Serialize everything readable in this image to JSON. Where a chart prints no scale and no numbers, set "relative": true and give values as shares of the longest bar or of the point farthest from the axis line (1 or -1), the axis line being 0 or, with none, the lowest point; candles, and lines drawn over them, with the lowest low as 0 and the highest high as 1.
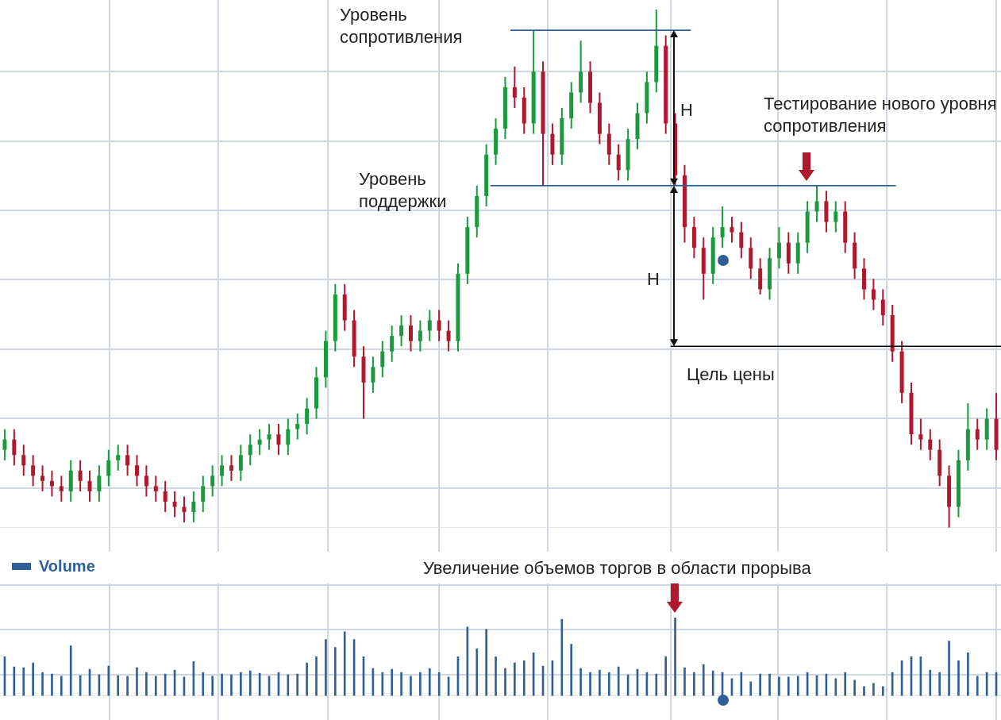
{
  "chart_data": [
    {
      "type": "candlestick",
      "relative": true,
      "grid": true,
      "categories": [
        null,
        null,
        null,
        null,
        null,
        null,
        null,
        null,
        null,
        null,
        null,
        null,
        null,
        null,
        null,
        null,
        null,
        null,
        null,
        null,
        null,
        null,
        null,
        null,
        null,
        null,
        null,
        null,
        null,
        null,
        null,
        null,
        null,
        null,
        null,
        null,
        null,
        null,
        null,
        null,
        null,
        null,
        null,
        null,
        null,
        null,
        null,
        null,
        null,
        null,
        null,
        null,
        null,
        null,
        null,
        null,
        null,
        null,
        null,
        null,
        null,
        null,
        null,
        null,
        null,
        null,
        null,
        null,
        null,
        null,
        null,
        null,
        null,
        null,
        null,
        null,
        null,
        null,
        null,
        null,
        null,
        null,
        null,
        null,
        null,
        null,
        null,
        null,
        null,
        null,
        null,
        null,
        null,
        null,
        null,
        null,
        null,
        null,
        null,
        null,
        null,
        null,
        null,
        null,
        null,
        null
      ],
      "ohlc": [
        [
          0.15,
          0.19,
          0.13,
          0.17
        ],
        [
          0.17,
          0.19,
          0.12,
          0.14
        ],
        [
          0.14,
          0.16,
          0.1,
          0.12
        ],
        [
          0.12,
          0.14,
          0.08,
          0.1
        ],
        [
          0.1,
          0.12,
          0.07,
          0.09
        ],
        [
          0.09,
          0.11,
          0.06,
          0.08
        ],
        [
          0.08,
          0.1,
          0.05,
          0.07
        ],
        [
          0.07,
          0.13,
          0.05,
          0.11
        ],
        [
          0.11,
          0.13,
          0.07,
          0.09
        ],
        [
          0.09,
          0.11,
          0.05,
          0.07
        ],
        [
          0.07,
          0.12,
          0.05,
          0.1
        ],
        [
          0.1,
          0.15,
          0.08,
          0.13
        ],
        [
          0.13,
          0.16,
          0.11,
          0.14
        ],
        [
          0.14,
          0.16,
          0.1,
          0.12
        ],
        [
          0.12,
          0.14,
          0.08,
          0.1
        ],
        [
          0.1,
          0.12,
          0.06,
          0.08
        ],
        [
          0.08,
          0.1,
          0.05,
          0.07
        ],
        [
          0.07,
          0.09,
          0.03,
          0.05
        ],
        [
          0.05,
          0.07,
          0.02,
          0.04
        ],
        [
          0.04,
          0.06,
          0.01,
          0.03
        ],
        [
          0.03,
          0.07,
          0.01,
          0.05
        ],
        [
          0.05,
          0.1,
          0.03,
          0.08
        ],
        [
          0.08,
          0.12,
          0.06,
          0.1
        ],
        [
          0.1,
          0.14,
          0.08,
          0.12
        ],
        [
          0.12,
          0.14,
          0.09,
          0.11
        ],
        [
          0.11,
          0.16,
          0.09,
          0.14
        ],
        [
          0.14,
          0.18,
          0.12,
          0.16
        ],
        [
          0.16,
          0.19,
          0.14,
          0.17
        ],
        [
          0.17,
          0.2,
          0.15,
          0.18
        ],
        [
          0.18,
          0.2,
          0.14,
          0.16
        ],
        [
          0.16,
          0.21,
          0.14,
          0.19
        ],
        [
          0.19,
          0.22,
          0.17,
          0.2
        ],
        [
          0.2,
          0.25,
          0.18,
          0.23
        ],
        [
          0.23,
          0.31,
          0.21,
          0.29
        ],
        [
          0.29,
          0.38,
          0.27,
          0.36
        ],
        [
          0.36,
          0.47,
          0.34,
          0.45
        ],
        [
          0.45,
          0.47,
          0.38,
          0.4
        ],
        [
          0.4,
          0.42,
          0.31,
          0.33
        ],
        [
          0.33,
          0.35,
          0.21,
          0.28
        ],
        [
          0.28,
          0.33,
          0.26,
          0.31
        ],
        [
          0.31,
          0.36,
          0.29,
          0.34
        ],
        [
          0.34,
          0.39,
          0.32,
          0.37
        ],
        [
          0.37,
          0.41,
          0.35,
          0.39
        ],
        [
          0.39,
          0.41,
          0.34,
          0.36
        ],
        [
          0.36,
          0.4,
          0.34,
          0.38
        ],
        [
          0.38,
          0.42,
          0.36,
          0.4
        ],
        [
          0.4,
          0.42,
          0.36,
          0.38
        ],
        [
          0.38,
          0.4,
          0.34,
          0.36
        ],
        [
          0.36,
          0.51,
          0.34,
          0.49
        ],
        [
          0.49,
          0.6,
          0.47,
          0.58
        ],
        [
          0.58,
          0.66,
          0.56,
          0.64
        ],
        [
          0.64,
          0.74,
          0.62,
          0.72
        ],
        [
          0.72,
          0.79,
          0.7,
          0.77
        ],
        [
          0.77,
          0.87,
          0.75,
          0.85
        ],
        [
          0.85,
          0.89,
          0.81,
          0.83
        ],
        [
          0.83,
          0.85,
          0.76,
          0.78
        ],
        [
          0.78,
          0.96,
          0.76,
          0.88
        ],
        [
          0.88,
          0.9,
          0.66,
          0.76
        ],
        [
          0.76,
          0.78,
          0.7,
          0.72
        ],
        [
          0.72,
          0.81,
          0.7,
          0.79
        ],
        [
          0.79,
          0.86,
          0.77,
          0.84
        ],
        [
          0.84,
          0.94,
          0.82,
          0.88
        ],
        [
          0.88,
          0.9,
          0.8,
          0.82
        ],
        [
          0.82,
          0.84,
          0.74,
          0.76
        ],
        [
          0.76,
          0.78,
          0.7,
          0.72
        ],
        [
          0.72,
          0.74,
          0.67,
          0.69
        ],
        [
          0.69,
          0.77,
          0.67,
          0.75
        ],
        [
          0.75,
          0.82,
          0.73,
          0.8
        ],
        [
          0.8,
          0.88,
          0.78,
          0.86
        ],
        [
          0.86,
          1.0,
          0.84,
          0.93
        ],
        [
          0.93,
          0.95,
          0.76,
          0.78
        ],
        [
          0.78,
          0.8,
          0.66,
          0.68
        ],
        [
          0.68,
          0.7,
          0.55,
          0.58
        ],
        [
          0.58,
          0.6,
          0.52,
          0.54
        ],
        [
          0.54,
          0.56,
          0.44,
          0.49
        ],
        [
          0.49,
          0.58,
          0.47,
          0.56
        ],
        [
          0.56,
          0.62,
          0.54,
          0.58
        ],
        [
          0.58,
          0.6,
          0.55,
          0.57
        ],
        [
          0.57,
          0.59,
          0.52,
          0.54
        ],
        [
          0.54,
          0.56,
          0.48,
          0.5
        ],
        [
          0.5,
          0.52,
          0.45,
          0.46
        ],
        [
          0.46,
          0.54,
          0.44,
          0.52
        ],
        [
          0.52,
          0.58,
          0.5,
          0.55
        ],
        [
          0.55,
          0.57,
          0.49,
          0.51
        ],
        [
          0.51,
          0.57,
          0.49,
          0.55
        ],
        [
          0.55,
          0.63,
          0.53,
          0.61
        ],
        [
          0.61,
          0.66,
          0.59,
          0.63
        ],
        [
          0.63,
          0.65,
          0.57,
          0.59
        ],
        [
          0.59,
          0.63,
          0.57,
          0.61
        ],
        [
          0.61,
          0.63,
          0.53,
          0.55
        ],
        [
          0.55,
          0.57,
          0.48,
          0.5
        ],
        [
          0.5,
          0.52,
          0.44,
          0.46
        ],
        [
          0.46,
          0.48,
          0.42,
          0.44
        ],
        [
          0.44,
          0.46,
          0.39,
          0.41
        ],
        [
          0.41,
          0.43,
          0.32,
          0.34
        ],
        [
          0.34,
          0.36,
          0.24,
          0.26
        ],
        [
          0.26,
          0.28,
          0.16,
          0.18
        ],
        [
          0.18,
          0.21,
          0.15,
          0.17
        ],
        [
          0.17,
          0.19,
          0.13,
          0.15
        ],
        [
          0.15,
          0.17,
          0.08,
          0.1
        ],
        [
          0.1,
          0.12,
          0.0,
          0.04
        ],
        [
          0.04,
          0.15,
          0.02,
          0.13
        ],
        [
          0.13,
          0.24,
          0.11,
          0.19
        ],
        [
          0.19,
          0.21,
          0.15,
          0.17
        ],
        [
          0.17,
          0.23,
          0.15,
          0.21
        ],
        [
          0.21,
          0.26,
          0.13,
          0.15
        ]
      ],
      "ref_lines": [
        {
          "axis": "y",
          "value": 0.96,
          "label": "Уровень сопротивления",
          "color": "#2f5f98"
        },
        {
          "axis": "y",
          "value": 0.66,
          "label": "Уровень поддержки",
          "color": "#2f5f98"
        },
        {
          "axis": "y",
          "value": 0.35,
          "label": "Цель цены",
          "color": "#000000"
        }
      ],
      "annotations": [
        "H",
        "H",
        "Тестирование нового уровня сопротивления"
      ]
    },
    {
      "type": "bar",
      "relative": true,
      "grid": true,
      "legend": "top left",
      "categories": [
        null,
        null,
        null,
        null,
        null,
        null,
        null,
        null,
        null,
        null,
        null,
        null,
        null,
        null,
        null,
        null,
        null,
        null,
        null,
        null,
        null,
        null,
        null,
        null,
        null,
        null,
        null,
        null,
        null,
        null,
        null,
        null,
        null,
        null,
        null,
        null,
        null,
        null,
        null,
        null,
        null,
        null,
        null,
        null,
        null,
        null,
        null,
        null,
        null,
        null,
        null,
        null,
        null,
        null,
        null,
        null,
        null,
        null,
        null,
        null,
        null,
        null,
        null,
        null,
        null,
        null,
        null,
        null,
        null,
        null,
        null,
        null,
        null,
        null,
        null,
        null,
        null,
        null,
        null,
        null,
        null,
        null,
        null,
        null,
        null,
        null,
        null,
        null,
        null,
        null,
        null,
        null,
        null,
        null,
        null,
        null,
        null,
        null,
        null,
        null,
        null,
        null,
        null,
        null,
        null,
        null
      ],
      "series": [
        {
          "name": "Volume",
          "color": "#2f5f98",
          "values": [
            0.5,
            0.37,
            0.36,
            0.42,
            0.3,
            0.28,
            0.25,
            0.64,
            0.26,
            0.34,
            0.27,
            0.38,
            0.26,
            0.25,
            0.36,
            0.3,
            0.25,
            0.28,
            0.33,
            0.24,
            0.44,
            0.3,
            0.25,
            0.28,
            0.27,
            0.3,
            0.32,
            0.29,
            0.25,
            0.3,
            0.27,
            0.28,
            0.42,
            0.5,
            0.72,
            0.62,
            0.82,
            0.72,
            0.5,
            0.35,
            0.3,
            0.34,
            0.3,
            0.25,
            0.3,
            0.35,
            0.3,
            0.24,
            0.5,
            0.88,
            0.6,
            0.85,
            0.5,
            0.35,
            0.42,
            0.45,
            0.55,
            0.38,
            0.45,
            0.98,
            0.66,
            0.35,
            0.3,
            0.33,
            0.3,
            0.37,
            0.27,
            0.34,
            0.3,
            0.28,
            0.5,
            1.0,
            0.36,
            0.3,
            0.4,
            0.32,
            0.3,
            0.22,
            0.3,
            0.18,
            0.28,
            0.28,
            0.24,
            0.24,
            0.25,
            0.3,
            0.26,
            0.28,
            0.22,
            0.3,
            0.2,
            0.12,
            0.16,
            0.12,
            0.3,
            0.45,
            0.5,
            0.5,
            0.33,
            0.3,
            0.7,
            0.45,
            0.55,
            0.25,
            0.3,
            0.3
          ]
        }
      ],
      "annotations": [
        "Увеличение объемов торгов в области прорыва"
      ]
    }
  ]
}
